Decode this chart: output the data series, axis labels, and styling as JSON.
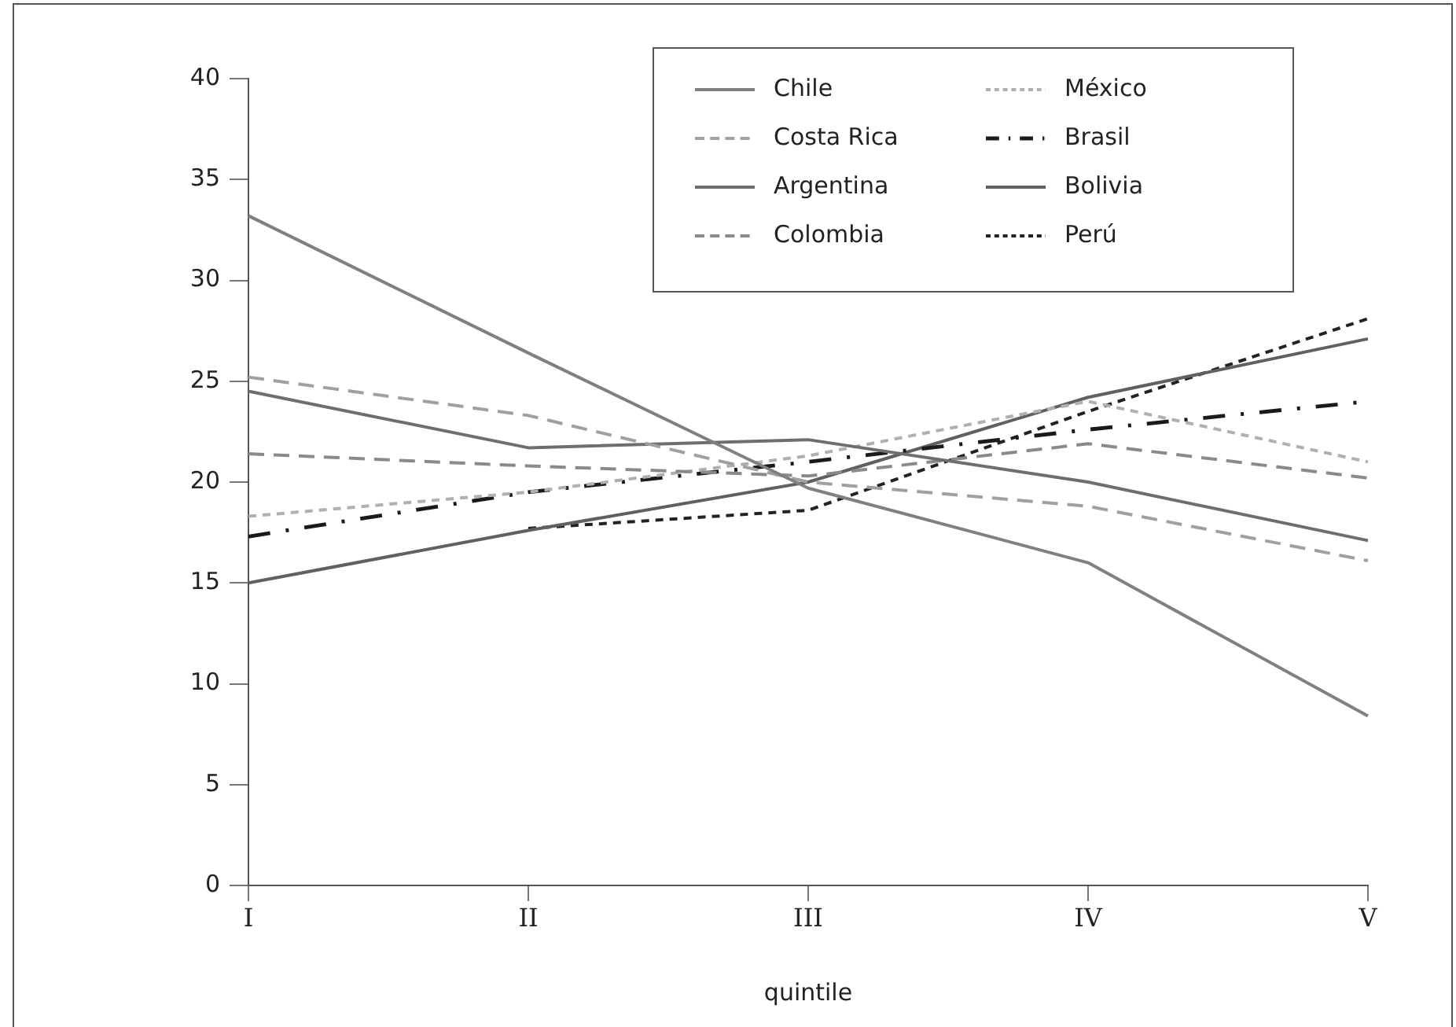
{
  "chart_data": {
    "type": "line",
    "xlabel": "quintile",
    "categories": [
      "I",
      "II",
      "III",
      "IV",
      "V"
    ],
    "ylim": [
      0,
      40
    ],
    "yticks": [
      0,
      5,
      10,
      15,
      20,
      25,
      30,
      35,
      40
    ],
    "grid": false,
    "legend": "top right",
    "marker": "none",
    "series": [
      {
        "name": "Chile",
        "color": "#808080",
        "line_style": "solid",
        "values": [
          33.2,
          26.4,
          19.7,
          16.0,
          8.4
        ]
      },
      {
        "name": "Costa Rica",
        "color": "#a0a0a0",
        "line_style": "dashed",
        "values": [
          25.2,
          23.3,
          20.0,
          18.8,
          16.1
        ]
      },
      {
        "name": "Argentina",
        "color": "#6e6e6e",
        "line_style": "solid",
        "values": [
          24.5,
          21.7,
          22.1,
          20.0,
          17.1
        ]
      },
      {
        "name": "Colombia",
        "color": "#8a8a8a",
        "line_style": "dashed",
        "values": [
          21.4,
          20.8,
          20.3,
          21.9,
          20.2
        ]
      },
      {
        "name": "México",
        "color": "#b0b0b0",
        "line_style": "dotted",
        "values": [
          18.3,
          19.5,
          21.3,
          24.0,
          21.0
        ]
      },
      {
        "name": "Brasil",
        "color": "#1a1a1a",
        "line_style": "dashdot",
        "values": [
          17.3,
          19.5,
          21.0,
          22.6,
          24.0
        ]
      },
      {
        "name": "Bolivia",
        "color": "#606060",
        "line_style": "solid",
        "values": [
          15.0,
          17.6,
          20.0,
          24.2,
          27.1
        ]
      },
      {
        "name": "Perú",
        "color": "#222222",
        "line_style": "dotted",
        "values": [
          null,
          17.7,
          18.6,
          23.5,
          28.1
        ]
      }
    ]
  }
}
